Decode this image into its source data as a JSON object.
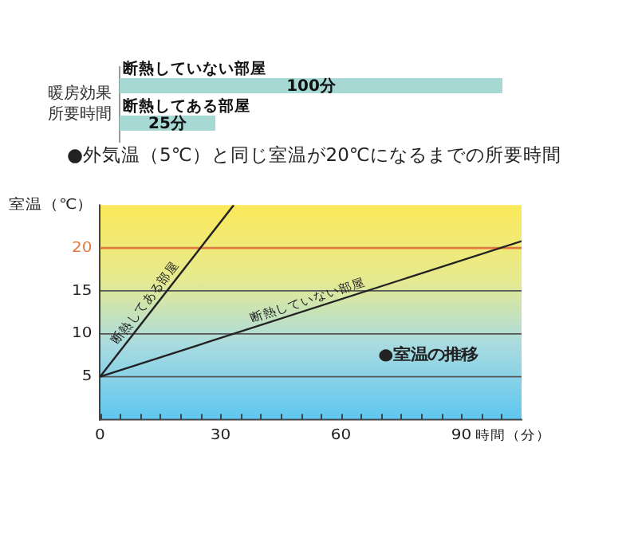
{
  "chart_data": [
    {
      "type": "bar",
      "orientation": "horizontal",
      "ylabel": "暖房効果所要時間",
      "categories": [
        "断熱していない部屋",
        "断熱してある部屋"
      ],
      "values": [
        100,
        25
      ],
      "value_labels": [
        "100分",
        "25分"
      ],
      "color": "#a6d8d4",
      "tick_labels": "y",
      "legend": false
    },
    {
      "type": "line",
      "title": "●外気温（5℃）と同じ室温が20℃になるまでの所要時間",
      "xlabel": "時間（分）",
      "ylabel": "室温（℃）",
      "xlim": [
        0,
        105
      ],
      "ylim": [
        0,
        25
      ],
      "xticks": [
        0,
        {
          "value": 5,
          "label": null
        },
        {
          "value": 10,
          "label": null
        },
        {
          "value": 15,
          "label": null
        },
        {
          "value": 20,
          "label": null
        },
        {
          "value": 25,
          "label": null
        },
        30,
        {
          "value": 35,
          "label": null
        },
        {
          "value": 40,
          "label": null
        },
        {
          "value": 45,
          "label": null
        },
        {
          "value": 50,
          "label": null
        },
        {
          "value": 55,
          "label": null
        },
        60,
        {
          "value": 65,
          "label": null
        },
        {
          "value": 70,
          "label": null
        },
        {
          "value": 75,
          "label": null
        },
        {
          "value": 80,
          "label": null
        },
        {
          "value": 85,
          "label": null
        },
        90,
        {
          "value": 95,
          "label": null
        },
        {
          "value": 100,
          "label": null
        }
      ],
      "yticks": [
        5,
        10,
        15,
        20
      ],
      "series": [
        {
          "name": "断熱してある部屋",
          "color": "#222222",
          "x": [
            0,
            33.3
          ],
          "values": [
            5,
            25
          ]
        },
        {
          "name": "断熱していない部屋",
          "color": "#222222",
          "x": [
            0,
            105
          ],
          "values": [
            5,
            20.8
          ]
        }
      ],
      "ref_lines": [
        {
          "axis": "y",
          "value": 20,
          "color": "#e07a40"
        }
      ],
      "annotations": [
        "●室温の推移"
      ],
      "grid": "y",
      "legend": false,
      "marker": "none",
      "line_style": "solid"
    }
  ]
}
